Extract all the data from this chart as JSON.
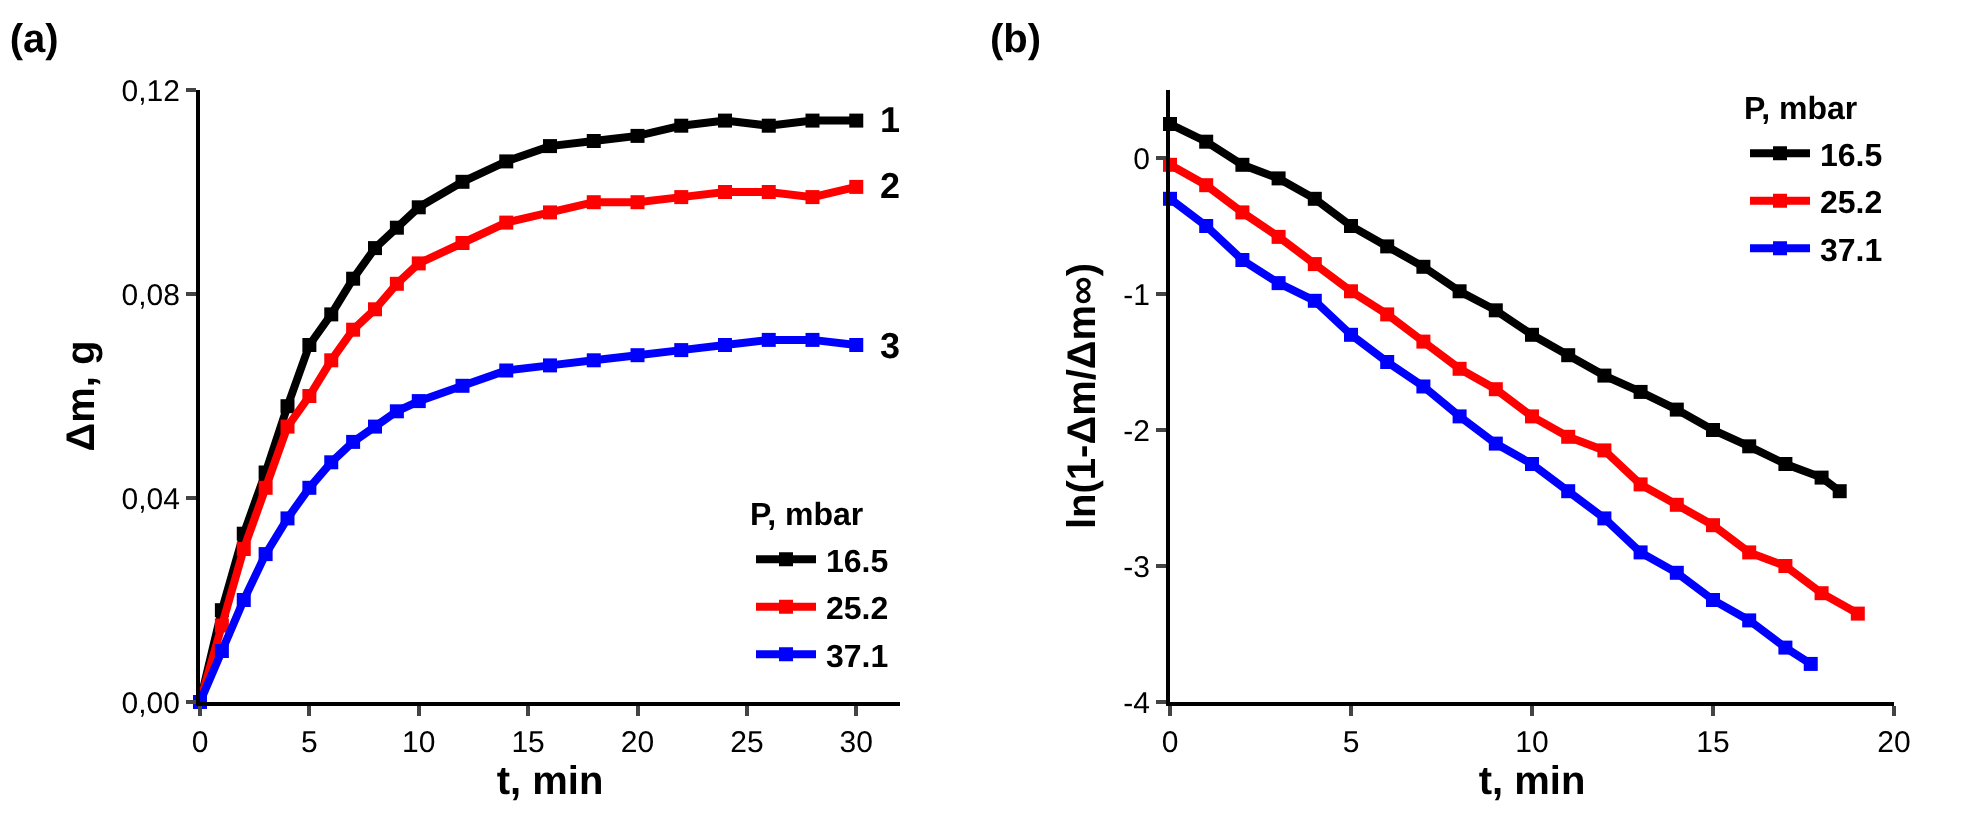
{
  "chart_data": [
    {
      "type": "line",
      "title": "(a)",
      "xlabel": "t, min",
      "ylabel": "Δm, g",
      "legend_title": "P, mbar",
      "legend": "bottom right",
      "marker": "square",
      "line_style": "solid",
      "grid": false,
      "xlim": [
        0,
        32
      ],
      "xticks": [
        0,
        5,
        10,
        15,
        20,
        25,
        30
      ],
      "ylim": [
        0,
        0.12
      ],
      "yticks": [
        {
          "value": 0,
          "label": "0,00"
        },
        {
          "value": 0.04,
          "label": "0,04"
        },
        {
          "value": 0.08,
          "label": "0,08"
        },
        {
          "value": 0.12,
          "label": "0,12"
        }
      ],
      "x": [
        0,
        1,
        2,
        3,
        4,
        5,
        6,
        7,
        8,
        9,
        10,
        12,
        14,
        16,
        18,
        20,
        22,
        24,
        26,
        28,
        30
      ],
      "series": [
        {
          "name": "16.5",
          "color": "#000000",
          "values": [
            0,
            0.018,
            0.033,
            0.045,
            0.058,
            0.07,
            0.076,
            0.083,
            0.089,
            0.093,
            0.097,
            0.102,
            0.106,
            0.109,
            0.11,
            0.111,
            0.113,
            0.114,
            0.113,
            0.114,
            0.114
          ]
        },
        {
          "name": "25.2",
          "color": "#ff0000",
          "values": [
            0,
            0.015,
            0.03,
            0.042,
            0.054,
            0.06,
            0.067,
            0.073,
            0.077,
            0.082,
            0.086,
            0.09,
            0.094,
            0.096,
            0.098,
            0.098,
            0.099,
            0.1,
            0.1,
            0.099,
            0.101
          ]
        },
        {
          "name": "37.1",
          "color": "#0000ff",
          "values": [
            0,
            0.01,
            0.02,
            0.029,
            0.036,
            0.042,
            0.047,
            0.051,
            0.054,
            0.057,
            0.059,
            0.062,
            0.065,
            0.066,
            0.067,
            0.068,
            0.069,
            0.07,
            0.071,
            0.071,
            0.07
          ]
        }
      ],
      "annotations": [
        "1",
        "2",
        "3"
      ]
    },
    {
      "type": "line",
      "title": "(b)",
      "xlabel": "t, min",
      "ylabel": "ln(1-Δm/Δm∞)",
      "legend_title": "P, mbar",
      "legend": "top right",
      "marker": "square",
      "line_style": "solid",
      "grid": false,
      "xlim": [
        0,
        20
      ],
      "xticks": [
        0,
        5,
        10,
        15,
        20
      ],
      "ylim": [
        -4,
        0.5
      ],
      "yticks": [
        -4,
        -3,
        -2,
        -1,
        0
      ],
      "series": [
        {
          "name": "16.5",
          "color": "#000000",
          "x": [
            0,
            1,
            2,
            3,
            4,
            5,
            6,
            7,
            8,
            9,
            10,
            11,
            12,
            13,
            14,
            15,
            16,
            17,
            18,
            18.5
          ],
          "values": [
            0.25,
            0.12,
            -0.05,
            -0.15,
            -0.3,
            -0.5,
            -0.65,
            -0.8,
            -0.98,
            -1.12,
            -1.3,
            -1.45,
            -1.6,
            -1.72,
            -1.85,
            -2.0,
            -2.12,
            -2.25,
            -2.35,
            -2.45
          ]
        },
        {
          "name": "25.2",
          "color": "#ff0000",
          "x": [
            0,
            1,
            2,
            3,
            4,
            5,
            6,
            7,
            8,
            9,
            10,
            11,
            12,
            13,
            14,
            15,
            16,
            17,
            18,
            19
          ],
          "values": [
            -0.05,
            -0.2,
            -0.4,
            -0.58,
            -0.78,
            -0.98,
            -1.15,
            -1.35,
            -1.55,
            -1.7,
            -1.9,
            -2.05,
            -2.15,
            -2.4,
            -2.55,
            -2.7,
            -2.9,
            -3.0,
            -3.2,
            -3.35
          ]
        },
        {
          "name": "37.1",
          "color": "#0000ff",
          "x": [
            0,
            1,
            2,
            3,
            4,
            5,
            6,
            7,
            8,
            9,
            10,
            11,
            12,
            13,
            14,
            15,
            16,
            17,
            17.7
          ],
          "values": [
            -0.3,
            -0.5,
            -0.75,
            -0.92,
            -1.05,
            -1.3,
            -1.5,
            -1.68,
            -1.9,
            -2.1,
            -2.25,
            -2.45,
            -2.65,
            -2.9,
            -3.05,
            -3.25,
            -3.4,
            -3.6,
            -3.72
          ]
        }
      ]
    }
  ]
}
